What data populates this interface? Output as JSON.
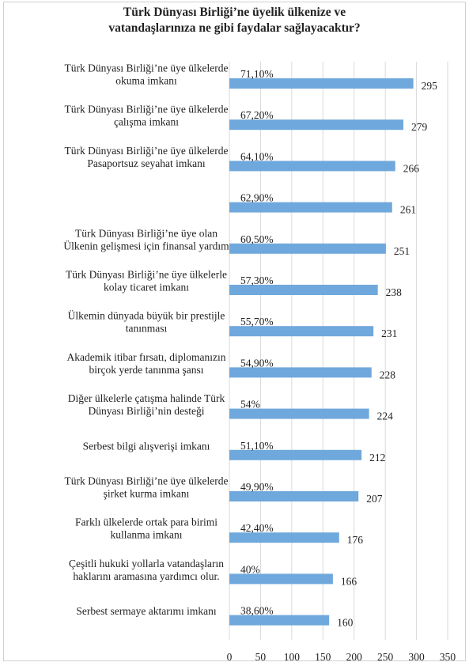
{
  "chart_data": {
    "type": "bar",
    "title_line1": "Türk Dünyası Birliği’ne üyelik ülkenize ve",
    "title_line2": "vatandaşlarınıza ne gibi faydalar sağlayacaktır?",
    "xlabel": "",
    "ylabel": "",
    "xlim": [
      0,
      350
    ],
    "xticks": [
      0,
      50,
      100,
      150,
      200,
      250,
      300,
      350
    ],
    "grid": "vertical",
    "bar_color": "#6fa8dc",
    "categories": [
      [
        "Türk Dünyası Birliği’ne üye ülkelerde",
        "okuma imkanı"
      ],
      [
        "Türk Dünyası Birliği’ne üye ülkelerde",
        "çalışma imkanı"
      ],
      [
        "Türk Dünyası Birliği’ne üye ülkelerde",
        "Pasaportsuz seyahat imkanı"
      ],
      [],
      [
        "Türk Dünyası Birliği’ne üye olan",
        "Ülkenin gelişmesi için finansal yardım"
      ],
      [
        "Türk Dünyası Birliği’ne üye ülkelerle",
        "kolay ticaret imkanı"
      ],
      [
        "Ülkemin dünyada büyük bir prestijle",
        "tanınması"
      ],
      [
        "Akademik itibar fırsatı, diplomanızın",
        "birçok yerde tanınma şansı"
      ],
      [
        "Diğer ülkelerle çatışma halinde Türk",
        "Dünyası Birliği’nin desteği"
      ],
      [
        "Serbest bilgi alışverişi imkanı"
      ],
      [
        "Türk Dünyası Birliği’ne üye ülkelerde",
        "şirket kurma imkanı"
      ],
      [
        "Farklı ülkelerde ortak para birimi",
        "kullanma imkanı"
      ],
      [
        "Çeşitli hukuki yollarla vatandaşların",
        "haklarını aramasına yardımcı olur."
      ],
      [
        "Serbest sermaye aktarımı imkanı"
      ]
    ],
    "values": [
      295,
      279,
      266,
      261,
      251,
      238,
      231,
      228,
      224,
      212,
      207,
      176,
      166,
      160
    ],
    "percent_labels": [
      "71,10%",
      "67,20%",
      "64,10%",
      "62,90%",
      "60,50%",
      "57,30%",
      "55,70%",
      "54,90%",
      "54%",
      "51,10%",
      "49,90%",
      "42,40%",
      "40%",
      "38,60%"
    ]
  }
}
